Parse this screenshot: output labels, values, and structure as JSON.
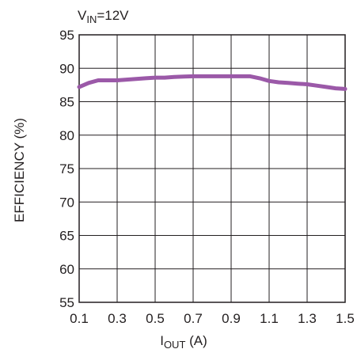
{
  "chart_data": {
    "type": "line",
    "title": "",
    "annotation": {
      "main": "V",
      "sub": "IN",
      "rest": "=12V"
    },
    "xlabel": {
      "main": "I",
      "sub": "OUT",
      "rest": " (A)"
    },
    "ylabel": "EFFICIENCY (%)",
    "xlim": [
      0.1,
      1.5
    ],
    "ylim": [
      55,
      95
    ],
    "x_ticks": [
      "0.1",
      "0.3",
      "0.5",
      "0.7",
      "0.9",
      "1.1",
      "1.3",
      "1.5"
    ],
    "y_ticks": [
      "95",
      "90",
      "85",
      "80",
      "75",
      "70",
      "65",
      "60",
      "55"
    ],
    "grid": true,
    "line_color": "#9b59a8",
    "series": [
      {
        "x": [
          0.1,
          0.15,
          0.2,
          0.25,
          0.3,
          0.35,
          0.4,
          0.45,
          0.5,
          0.55,
          0.6,
          0.65,
          0.7,
          0.75,
          0.8,
          0.85,
          0.9,
          0.95,
          1.0,
          1.05,
          1.1,
          1.15,
          1.2,
          1.25,
          1.3,
          1.35,
          1.4,
          1.45,
          1.5
        ],
        "y": [
          87.2,
          87.8,
          88.2,
          88.2,
          88.2,
          88.3,
          88.4,
          88.5,
          88.6,
          88.6,
          88.7,
          88.75,
          88.8,
          88.8,
          88.8,
          88.8,
          88.8,
          88.8,
          88.8,
          88.5,
          88.1,
          87.9,
          87.8,
          87.7,
          87.6,
          87.4,
          87.2,
          87.0,
          86.9
        ]
      }
    ]
  }
}
